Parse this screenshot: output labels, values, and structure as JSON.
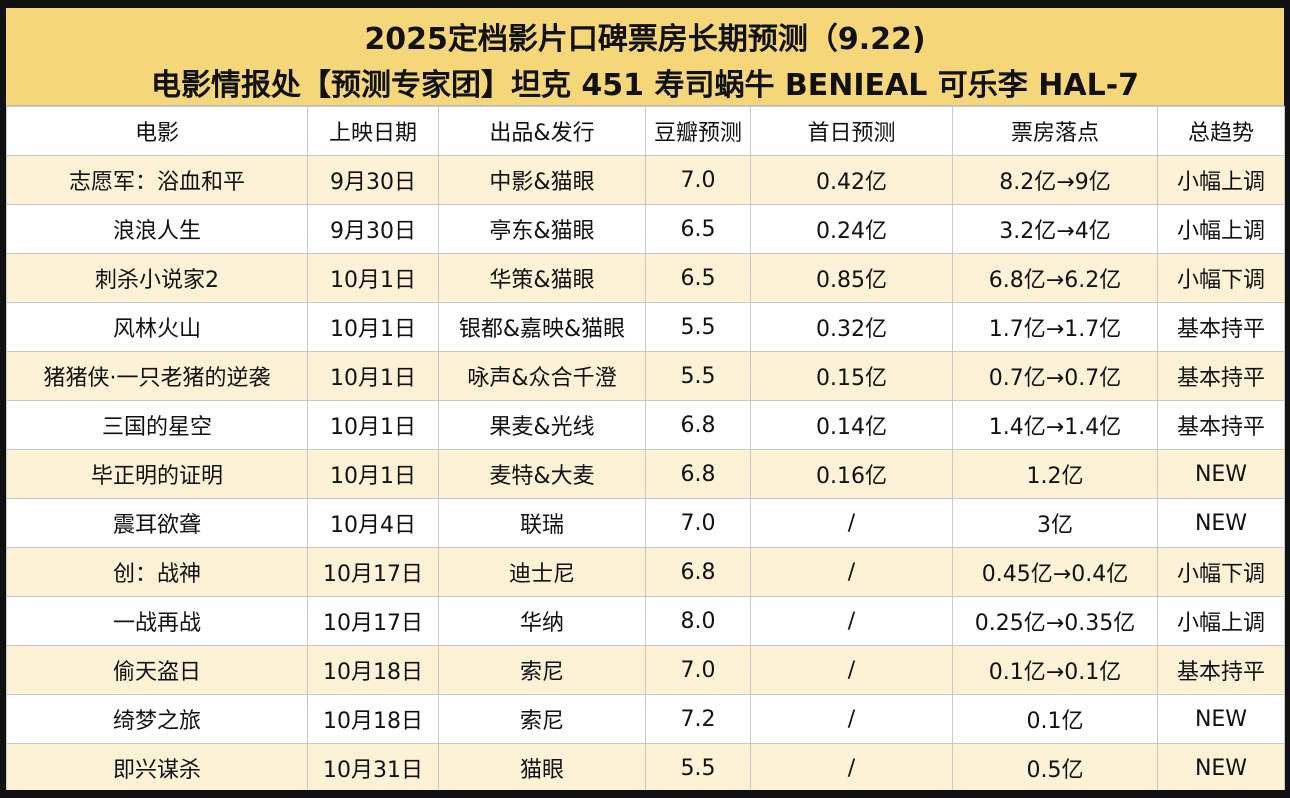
{
  "title": {
    "line1": "2025定档影片口碑票房长期预测（9.22)",
    "line2": "电影情报处【预测专家团】坦克 451 寿司蜗牛 BENIEAL 可乐李 HAL-7"
  },
  "headers": [
    "电影",
    "上映日期",
    "出品&发行",
    "豆瓣预测",
    "首日预测",
    "票房落点",
    "总趋势"
  ],
  "rows": [
    [
      "志愿军：浴血和平",
      "9月30日",
      "中影&猫眼",
      "7.0",
      "0.42亿",
      "8.2亿→9亿",
      "小幅上调"
    ],
    [
      "浪浪人生",
      "9月30日",
      "亭东&猫眼",
      "6.5",
      "0.24亿",
      "3.2亿→4亿",
      "小幅上调"
    ],
    [
      "刺杀小说家2",
      "10月1日",
      "华策&猫眼",
      "6.5",
      "0.85亿",
      "6.8亿→6.2亿",
      "小幅下调"
    ],
    [
      "风林火山",
      "10月1日",
      "银都&嘉映&猫眼",
      "5.5",
      "0.32亿",
      "1.7亿→1.7亿",
      "基本持平"
    ],
    [
      "猪猪侠·一只老猪的逆袭",
      "10月1日",
      "咏声&众合千澄",
      "5.5",
      "0.15亿",
      "0.7亿→0.7亿",
      "基本持平"
    ],
    [
      "三国的星空",
      "10月1日",
      "果麦&光线",
      "6.8",
      "0.14亿",
      "1.4亿→1.4亿",
      "基本持平"
    ],
    [
      "毕正明的证明",
      "10月1日",
      "麦特&大麦",
      "6.8",
      "0.16亿",
      "1.2亿",
      "NEW"
    ],
    [
      "震耳欲聋",
      "10月4日",
      "联瑞",
      "7.0",
      "/",
      "3亿",
      "NEW"
    ],
    [
      "创：战神",
      "10月17日",
      "迪士尼",
      "6.8",
      "/",
      "0.45亿→0.4亿",
      "小幅下调"
    ],
    [
      "一战再战",
      "10月17日",
      "华纳",
      "8.0",
      "/",
      "0.25亿→0.35亿",
      "小幅上调"
    ],
    [
      "偷天盗日",
      "10月18日",
      "索尼",
      "7.0",
      "/",
      "0.1亿→0.1亿",
      "基本持平"
    ],
    [
      "绮梦之旅",
      "10月18日",
      "索尼",
      "7.2",
      "/",
      "0.1亿",
      "NEW"
    ],
    [
      "即兴谋杀",
      "10月31日",
      "猫眼",
      "5.5",
      "/",
      "0.5亿",
      "NEW"
    ]
  ],
  "colors": {
    "title_bg": "#f5d77a",
    "row_shade": "#fdf1d6",
    "row_plain": "#ffffff",
    "grid": "#c8c8c8"
  }
}
